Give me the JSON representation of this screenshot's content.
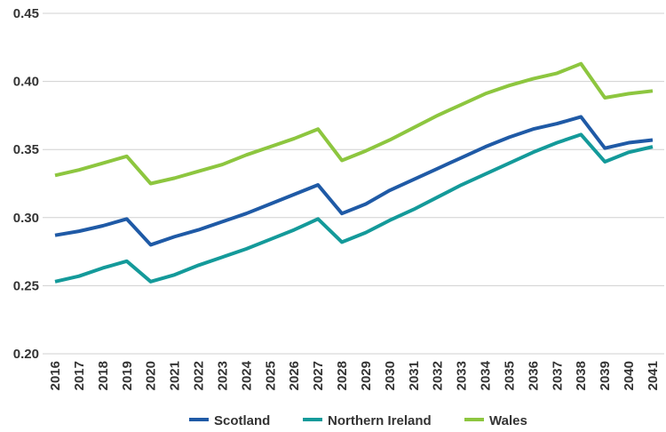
{
  "chart_data": {
    "type": "line",
    "categories": [
      "2016",
      "2017",
      "2018",
      "2019",
      "2020",
      "2021",
      "2022",
      "2023",
      "2024",
      "2025",
      "2026",
      "2027",
      "2028",
      "2029",
      "2030",
      "2031",
      "2032",
      "2033",
      "2034",
      "2035",
      "2036",
      "2037",
      "2038",
      "2039",
      "2040",
      "2041"
    ],
    "series": [
      {
        "name": "Scotland",
        "color": "#1f5aa6",
        "values": [
          0.287,
          0.29,
          0.294,
          0.299,
          0.28,
          0.286,
          0.291,
          0.297,
          0.303,
          0.31,
          0.317,
          0.324,
          0.303,
          0.31,
          0.32,
          0.328,
          0.336,
          0.344,
          0.352,
          0.359,
          0.365,
          0.369,
          0.374,
          0.351,
          0.355,
          0.357
        ]
      },
      {
        "name": "Northern Ireland",
        "color": "#149a9a",
        "values": [
          0.253,
          0.257,
          0.263,
          0.268,
          0.253,
          0.258,
          0.265,
          0.271,
          0.277,
          0.284,
          0.291,
          0.299,
          0.282,
          0.289,
          0.298,
          0.306,
          0.315,
          0.324,
          0.332,
          0.34,
          0.348,
          0.355,
          0.361,
          0.341,
          0.348,
          0.352
        ]
      },
      {
        "name": "Wales",
        "color": "#8dc63f",
        "values": [
          0.331,
          0.335,
          0.34,
          0.345,
          0.325,
          0.329,
          0.334,
          0.339,
          0.346,
          0.352,
          0.358,
          0.365,
          0.342,
          0.349,
          0.357,
          0.366,
          0.375,
          0.383,
          0.391,
          0.397,
          0.402,
          0.406,
          0.413,
          0.388,
          0.391,
          0.393
        ]
      }
    ],
    "ylim": [
      0.2,
      0.45
    ],
    "yticks": [
      {
        "value": 0.2,
        "label": "0.20"
      },
      0.25,
      {
        "value": 0.3,
        "label": "0.30"
      },
      0.35,
      {
        "value": 0.4,
        "label": "0.40"
      },
      0.45
    ],
    "grid": true,
    "legend": "bottom"
  }
}
